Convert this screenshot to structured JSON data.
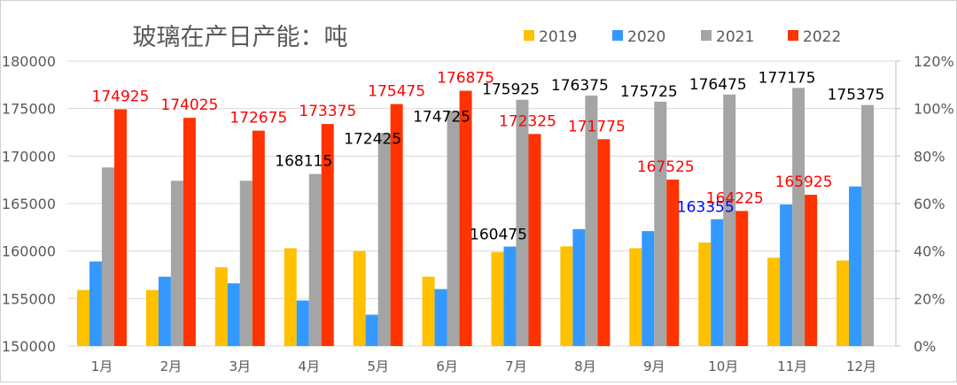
{
  "chart_data": {
    "type": "bar",
    "title": "玻璃在产日产能：吨",
    "categories": [
      "1月",
      "2月",
      "3月",
      "4月",
      "5月",
      "6月",
      "7月",
      "8月",
      "9月",
      "10月",
      "11月",
      "12月"
    ],
    "ylim": [
      150000,
      180000
    ],
    "yticks": [
      "150000",
      "155000",
      "160000",
      "165000",
      "170000",
      "175000",
      "180000"
    ],
    "y2lim": [
      0,
      120
    ],
    "y2ticks": [
      "0%",
      "20%",
      "40%",
      "60%",
      "80%",
      "100%",
      "120%"
    ],
    "grid": true,
    "legend_position": "top-right",
    "series": [
      {
        "name": "2019",
        "color": "#FFC000",
        "values": [
          155900,
          155900,
          158300,
          160300,
          160000,
          157300,
          159900,
          160500,
          160300,
          160900,
          159300,
          159000
        ],
        "labels": [
          null,
          null,
          null,
          null,
          null,
          null,
          null,
          null,
          null,
          null,
          null,
          null
        ]
      },
      {
        "name": "2020",
        "color": "#3399FF",
        "values": [
          158900,
          157300,
          156600,
          154800,
          153300,
          156000,
          160475,
          162300,
          162100,
          163355,
          164900,
          166800
        ],
        "labels": [
          null,
          null,
          null,
          null,
          null,
          null,
          "160475",
          null,
          null,
          "163355",
          null,
          null
        ],
        "label_colors": [
          null,
          null,
          null,
          null,
          null,
          null,
          "#000000",
          null,
          null,
          "#0000FF",
          null,
          null
        ]
      },
      {
        "name": "2021",
        "color": "#A5A5A5",
        "values": [
          168800,
          167400,
          167400,
          168115,
          172425,
          174725,
          175925,
          176375,
          175725,
          176475,
          177175,
          175375
        ],
        "labels": [
          null,
          null,
          null,
          "168115",
          "172425",
          "174725",
          "175925",
          "176375",
          "175725",
          "176475",
          "177175",
          "175375"
        ]
      },
      {
        "name": "2022",
        "color": "#FF3300",
        "values": [
          174925,
          174025,
          172675,
          173375,
          175475,
          176875,
          172325,
          171775,
          167525,
          164225,
          165925,
          null
        ],
        "labels": [
          "174925",
          "174025",
          "172675",
          "173375",
          "175475",
          "176875",
          "172325",
          "171775",
          "167525",
          "164225",
          "165925",
          null
        ]
      }
    ]
  }
}
